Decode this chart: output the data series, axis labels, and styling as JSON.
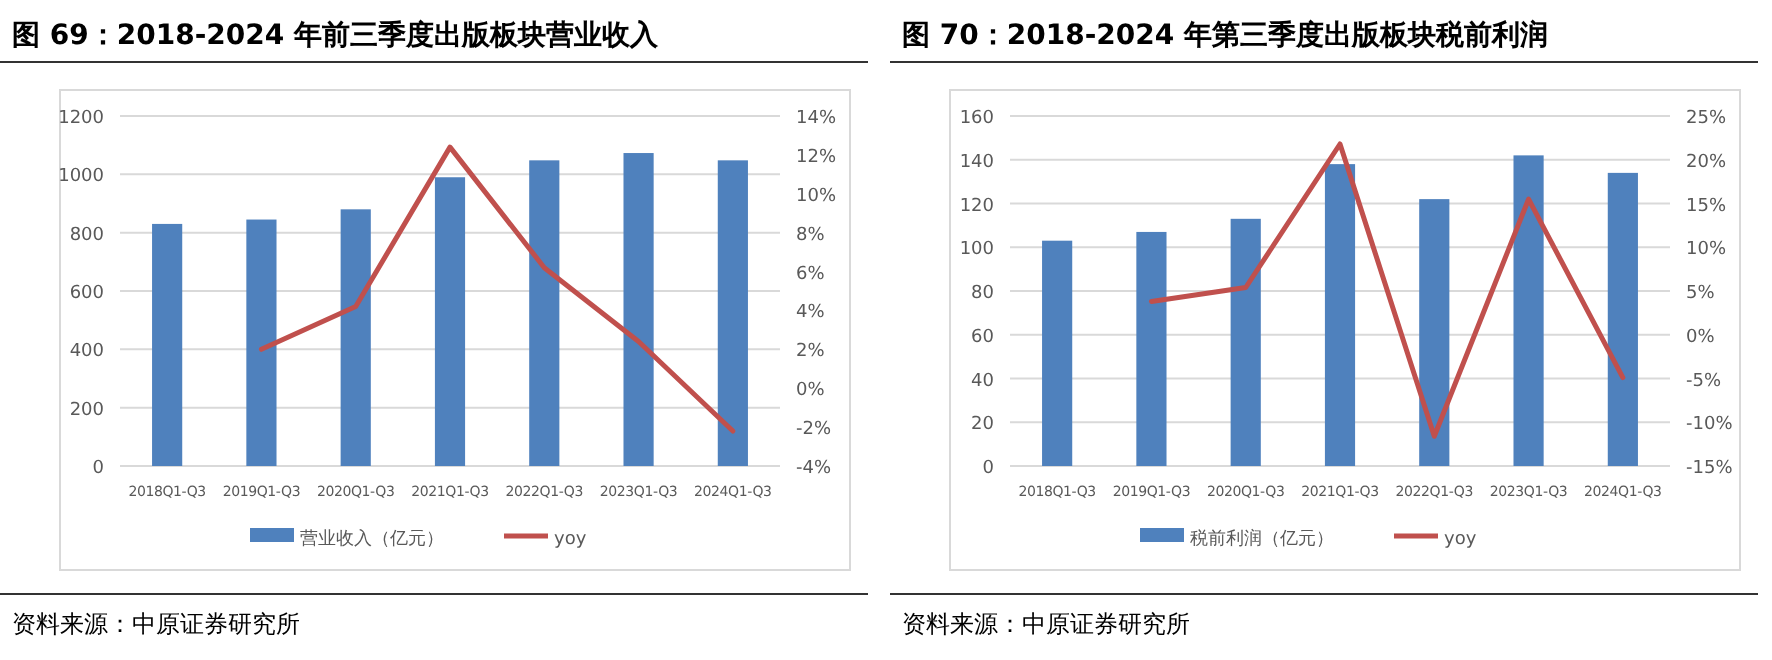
{
  "chart_data": [
    {
      "type": "bar",
      "title": "图 69：2018-2024 年前三季度出版板块营业收入",
      "categories": [
        "2018Q1-Q3",
        "2019Q1-Q3",
        "2020Q1-Q3",
        "2021Q1-Q3",
        "2022Q1-Q3",
        "2023Q1-Q3",
        "2024Q1-Q3"
      ],
      "series": [
        {
          "name": "营业收入（亿元）",
          "color": "#4f81bd",
          "values": [
            830,
            845,
            880,
            990,
            1048,
            1073,
            1048
          ]
        },
        {
          "name": "yoy",
          "type": "line",
          "axis": "y2",
          "color": "#c0504d",
          "values": [
            null,
            2.0,
            4.2,
            12.4,
            6.2,
            2.4,
            -2.2
          ]
        }
      ],
      "ylim": [
        0,
        1200
      ],
      "yticks": [
        0,
        200,
        400,
        600,
        800,
        1000,
        1200
      ],
      "y2lim": [
        -4,
        14
      ],
      "y2ticks": [
        {
          "value": -4,
          "label": "-4%"
        },
        {
          "value": -2,
          "label": "-2%"
        },
        {
          "value": 0,
          "label": "0%"
        },
        {
          "value": 2,
          "label": "2%"
        },
        {
          "value": 4,
          "label": "4%"
        },
        {
          "value": 6,
          "label": "6%"
        },
        {
          "value": 8,
          "label": "8%"
        },
        {
          "value": 10,
          "label": "10%"
        },
        {
          "value": 12,
          "label": "12%"
        },
        {
          "value": 14,
          "label": "14%"
        }
      ],
      "grid": "y",
      "legend": "bottom",
      "annotations": [
        "资料来源：中原证券研究所"
      ]
    },
    {
      "type": "bar",
      "title": "图 70：2018-2024 年第三季度出版板块税前利润",
      "categories": [
        "2018Q1-Q3",
        "2019Q1-Q3",
        "2020Q1-Q3",
        "2021Q1-Q3",
        "2022Q1-Q3",
        "2023Q1-Q3",
        "2024Q1-Q3"
      ],
      "series": [
        {
          "name": "税前利润（亿元）",
          "color": "#4f81bd",
          "values": [
            103,
            107,
            113,
            138,
            122,
            142,
            134
          ]
        },
        {
          "name": "yoy",
          "type": "line",
          "axis": "y2",
          "color": "#c0504d",
          "values": [
            null,
            3.8,
            5.4,
            21.8,
            -11.6,
            15.5,
            -4.9
          ]
        }
      ],
      "ylim": [
        0,
        160
      ],
      "yticks": [
        0,
        20,
        40,
        60,
        80,
        100,
        120,
        140,
        160
      ],
      "y2lim": [
        -15,
        25
      ],
      "y2ticks": [
        {
          "value": -15,
          "label": "-15%"
        },
        {
          "value": -10,
          "label": "-10%"
        },
        {
          "value": -5,
          "label": "-5%"
        },
        {
          "value": 0,
          "label": "0%"
        },
        {
          "value": 5,
          "label": "5%"
        },
        {
          "value": 10,
          "label": "10%"
        },
        {
          "value": 15,
          "label": "15%"
        },
        {
          "value": 20,
          "label": "20%"
        },
        {
          "value": 25,
          "label": "25%"
        }
      ],
      "grid": "y",
      "legend": "bottom",
      "annotations": [
        "资料来源：中原证券研究所"
      ]
    }
  ]
}
